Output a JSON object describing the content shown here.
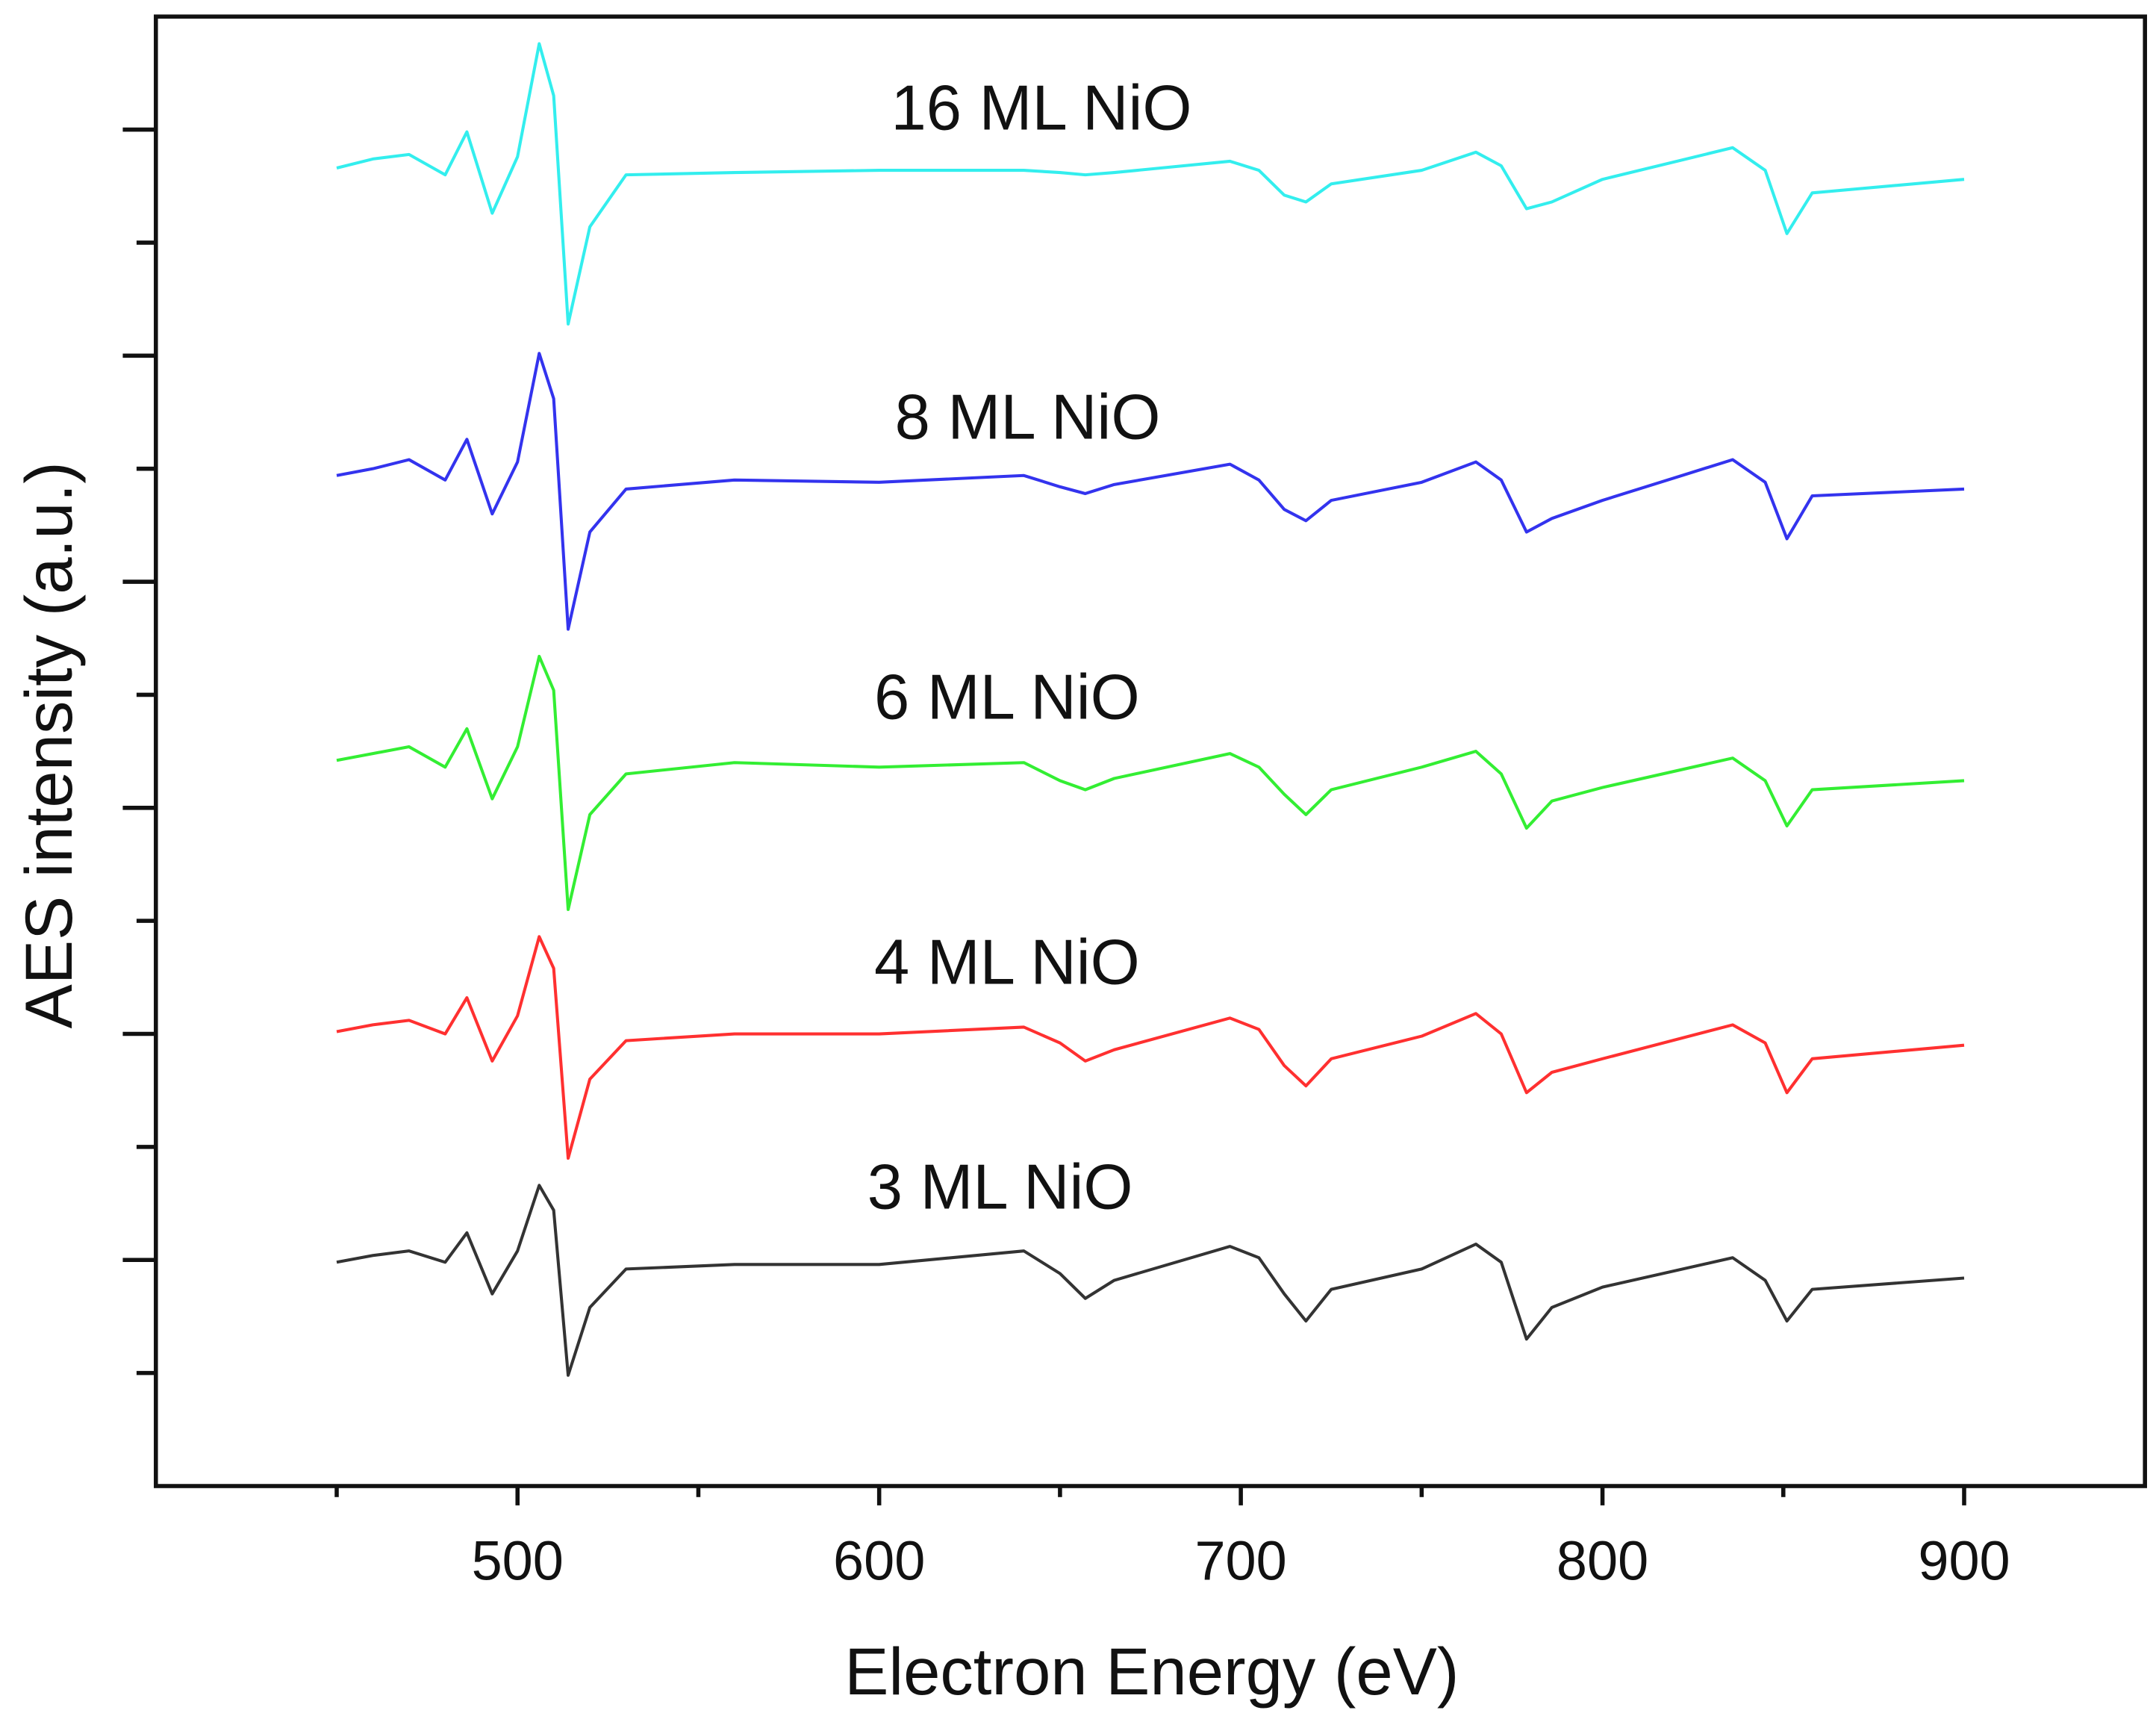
{
  "chart_data": {
    "type": "line",
    "x_label": "Electron Energy (eV)",
    "y_label": "AES intensity (a.u.)",
    "xlim": [
      400,
      950
    ],
    "xticks": [
      500,
      600,
      700,
      800,
      900
    ],
    "xticks_minor": [
      450,
      550,
      650,
      750,
      850
    ],
    "ylim": [
      0,
      6.5
    ],
    "yticks": [
      1,
      2,
      3,
      4,
      5,
      6
    ],
    "yticks_minor": [
      0.5,
      1.5,
      2.5,
      3.5,
      4.5,
      5.5
    ],
    "x": [
      450,
      460,
      470,
      480,
      486,
      493,
      500,
      506,
      510,
      514,
      520,
      530,
      560,
      600,
      640,
      650,
      657,
      665,
      697,
      705,
      712,
      718,
      725,
      750,
      765,
      772,
      779,
      786,
      800,
      836,
      845,
      851,
      858,
      900
    ],
    "series": [
      {
        "name": "3 ML NiO",
        "color": "#333333",
        "values": [
          0.99,
          1.02,
          1.04,
          0.99,
          1.12,
          0.85,
          1.04,
          1.33,
          1.22,
          0.49,
          0.79,
          0.96,
          0.98,
          0.98,
          1.04,
          0.94,
          0.83,
          0.91,
          1.06,
          1.01,
          0.85,
          0.73,
          0.87,
          0.96,
          1.07,
          0.99,
          0.65,
          0.79,
          0.88,
          1.01,
          0.91,
          0.73,
          0.87,
          0.92
        ]
      },
      {
        "name": "4 ML NiO",
        "color": "#ff3030",
        "values": [
          2.01,
          2.04,
          2.06,
          2.0,
          2.16,
          1.88,
          2.08,
          2.43,
          2.29,
          1.45,
          1.8,
          1.97,
          2.0,
          2.0,
          2.03,
          1.96,
          1.88,
          1.93,
          2.07,
          2.02,
          1.86,
          1.77,
          1.89,
          1.99,
          2.09,
          2.0,
          1.74,
          1.83,
          1.89,
          2.04,
          1.96,
          1.74,
          1.89,
          1.95
        ]
      },
      {
        "name": "6 ML NiO",
        "color": "#33ee33",
        "values": [
          3.21,
          3.24,
          3.27,
          3.18,
          3.35,
          3.04,
          3.27,
          3.67,
          3.52,
          2.55,
          2.97,
          3.15,
          3.2,
          3.18,
          3.2,
          3.12,
          3.08,
          3.13,
          3.24,
          3.18,
          3.06,
          2.97,
          3.08,
          3.18,
          3.25,
          3.15,
          2.91,
          3.03,
          3.09,
          3.22,
          3.12,
          2.92,
          3.08,
          3.12
        ]
      },
      {
        "name": "8 ML NiO",
        "color": "#3333ee",
        "values": [
          4.47,
          4.5,
          4.54,
          4.45,
          4.63,
          4.3,
          4.53,
          5.01,
          4.81,
          3.79,
          4.22,
          4.41,
          4.45,
          4.44,
          4.47,
          4.42,
          4.39,
          4.43,
          4.52,
          4.45,
          4.32,
          4.27,
          4.36,
          4.44,
          4.53,
          4.45,
          4.22,
          4.28,
          4.36,
          4.54,
          4.44,
          4.19,
          4.38,
          4.41
        ]
      },
      {
        "name": "16 ML NiO",
        "color": "#33eeee",
        "values": [
          5.83,
          5.87,
          5.89,
          5.8,
          5.99,
          5.63,
          5.88,
          6.38,
          6.15,
          5.14,
          5.57,
          5.8,
          5.81,
          5.82,
          5.82,
          5.81,
          5.8,
          5.81,
          5.86,
          5.82,
          5.71,
          5.68,
          5.76,
          5.82,
          5.9,
          5.84,
          5.65,
          5.68,
          5.78,
          5.92,
          5.82,
          5.54,
          5.72,
          5.78
        ]
      }
    ]
  }
}
